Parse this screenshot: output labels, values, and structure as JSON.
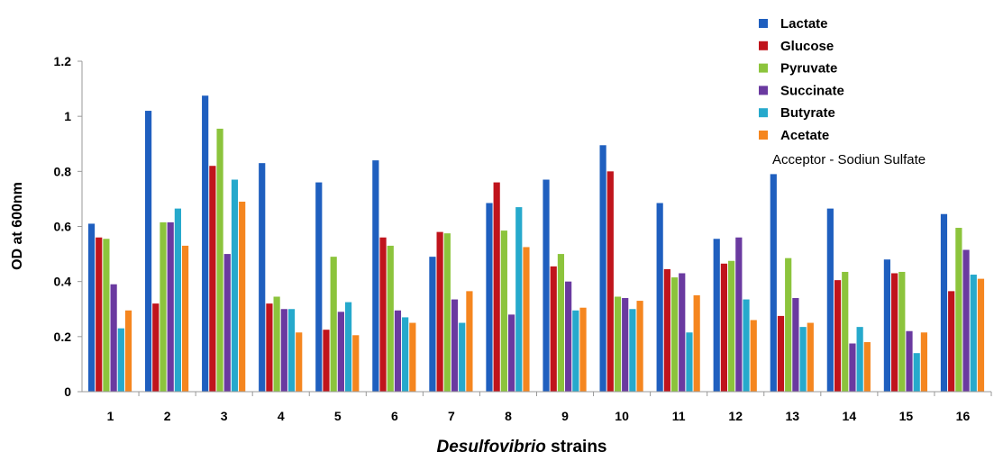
{
  "chart_data": {
    "type": "bar",
    "ylabel": "OD at 600nm",
    "xlabel_italic": "Desulfovibrio",
    "xlabel_rest": " strains",
    "ylim": [
      0,
      1.2
    ],
    "yticks": [
      "0",
      "0.2",
      "0.4",
      "0.6",
      "0.8",
      "1",
      "1.2"
    ],
    "grid": false,
    "legend_position": "top-right",
    "annotation": "Acceptor - Sodiun Sulfate",
    "categories": [
      "1",
      "2",
      "3",
      "4",
      "5",
      "6",
      "7",
      "8",
      "9",
      "10",
      "11",
      "12",
      "13",
      "14",
      "15",
      "16"
    ],
    "series": [
      {
        "name": "Lactate",
        "color": "#1f5fbf",
        "values": [
          0.61,
          1.02,
          1.075,
          0.83,
          0.76,
          0.84,
          0.49,
          0.685,
          0.77,
          0.895,
          0.685,
          0.555,
          0.79,
          0.665,
          0.48,
          0.645
        ]
      },
      {
        "name": "Glucose",
        "color": "#c0141c",
        "values": [
          0.56,
          0.32,
          0.82,
          0.32,
          0.225,
          0.56,
          0.58,
          0.76,
          0.455,
          0.8,
          0.445,
          0.465,
          0.275,
          0.405,
          0.43,
          0.365
        ]
      },
      {
        "name": "Pyruvate",
        "color": "#8cc43c",
        "values": [
          0.555,
          0.615,
          0.955,
          0.345,
          0.49,
          0.53,
          0.575,
          0.585,
          0.5,
          0.345,
          0.415,
          0.475,
          0.485,
          0.435,
          0.435,
          0.595
        ]
      },
      {
        "name": "Succinate",
        "color": "#6a3aa0",
        "values": [
          0.39,
          0.615,
          0.5,
          0.3,
          0.29,
          0.295,
          0.335,
          0.28,
          0.4,
          0.34,
          0.43,
          0.56,
          0.34,
          0.175,
          0.22,
          0.515
        ]
      },
      {
        "name": "Butyrate",
        "color": "#26a9cc",
        "values": [
          0.23,
          0.665,
          0.77,
          0.3,
          0.325,
          0.27,
          0.25,
          0.67,
          0.295,
          0.3,
          0.215,
          0.335,
          0.235,
          0.235,
          0.14,
          0.425
        ]
      },
      {
        "name": "Acetate",
        "color": "#f5861f",
        "values": [
          0.295,
          0.53,
          0.69,
          0.215,
          0.205,
          0.25,
          0.365,
          0.525,
          0.305,
          0.33,
          0.35,
          0.26,
          0.25,
          0.18,
          0.215,
          0.41
        ]
      }
    ]
  }
}
